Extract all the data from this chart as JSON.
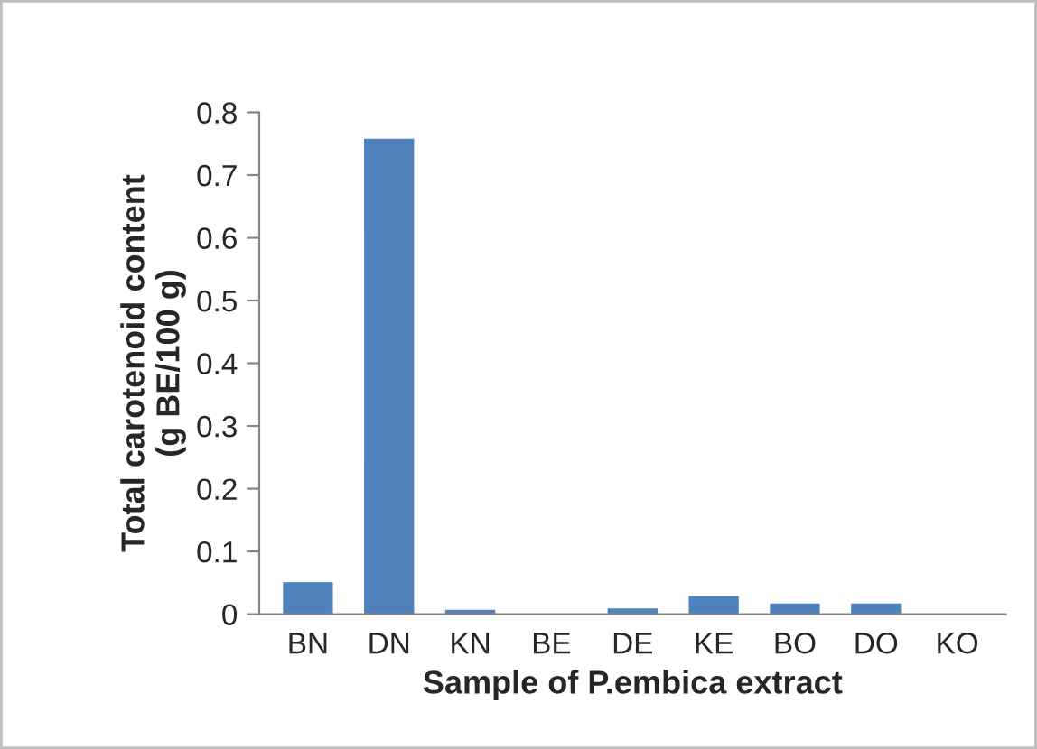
{
  "chart_data": {
    "type": "bar",
    "xlabel": "Sample of P.embica extract",
    "ylabel": "Total carotenoid content\n(g BE/100 g)",
    "categories": [
      "BN",
      "DN",
      "KN",
      "BE",
      "DE",
      "KE",
      "BO",
      "DO",
      "KO"
    ],
    "values": [
      0.05,
      0.757,
      0.006,
      0,
      0.008,
      0.028,
      0.016,
      0.016,
      0
    ],
    "color": "#4f81bd",
    "ylim": [
      0,
      0.8
    ],
    "yticks": [
      0,
      0.1,
      0.2,
      0.3,
      0.4,
      0.5,
      0.6,
      0.7,
      0.8
    ],
    "grid": false,
    "legend": false
  }
}
